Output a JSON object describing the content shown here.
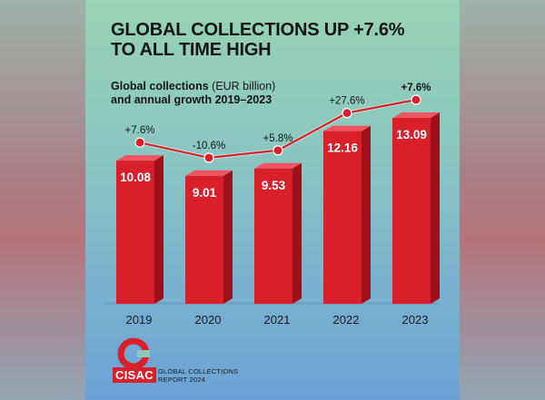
{
  "title_line1": "GLOBAL COLLECTIONS UP +7.6%",
  "title_line2": "TO ALL TIME HIGH",
  "subtitle_bold1": "Global collections",
  "subtitle_unit": "(EUR billion)",
  "subtitle_line2": "and annual growth 2019–2023",
  "logo": {
    "text": "CISAC",
    "caption_line1": "GLOBAL COLLECTIONS",
    "caption_line2": "REPORT 2024"
  },
  "colors": {
    "bar": "#d81f2a",
    "bar_dark": "#a0101a",
    "line": "#d81f2a"
  },
  "chart_data": {
    "type": "bar",
    "categories": [
      "2019",
      "2020",
      "2021",
      "2022",
      "2023"
    ],
    "values": [
      10.08,
      9.01,
      9.53,
      12.16,
      13.09
    ],
    "value_labels": [
      "10.08",
      "9.01",
      "9.53",
      "12.16",
      "13.09"
    ],
    "growth_labels": [
      "+7.6%",
      "-10.6%",
      "+5.8%",
      "+27.6%",
      "+7.6%"
    ],
    "growth_values": [
      7.6,
      -10.6,
      5.8,
      27.6,
      7.6
    ],
    "title": "Global collections (EUR billion) and annual growth 2019–2023",
    "xlabel": "",
    "ylabel": ""
  }
}
